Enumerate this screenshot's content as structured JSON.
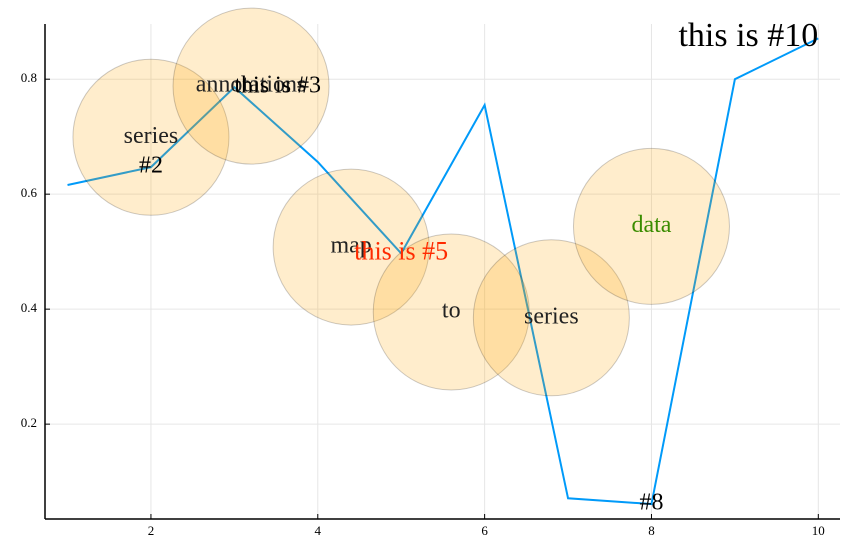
{
  "chart_data": {
    "type": "line",
    "x": [
      1,
      2,
      3,
      4,
      5,
      6,
      7,
      8,
      9,
      10
    ],
    "series": [
      {
        "color": "#009af9",
        "values": [
          0.616,
          0.647,
          0.786,
          0.656,
          0.497,
          0.755,
          0.071,
          0.061,
          0.8,
          0.871
        ]
      }
    ],
    "scatter": {
      "color": "#ffa500",
      "opacity": 0.2,
      "x": [
        2,
        3.2,
        4.4,
        5.6,
        6.8,
        8
      ],
      "values": [
        0.699,
        0.788,
        0.508,
        0.395,
        0.385,
        0.544
      ],
      "labels": [
        "series",
        "annotations",
        "map",
        "to",
        "series",
        "data"
      ],
      "label_colors": [
        "#222222",
        "#222222",
        "#222222",
        "#222222",
        "#222222",
        "#3a8c00"
      ]
    },
    "annotations": [
      {
        "x": 2,
        "y": 0.647,
        "text": "#2",
        "color": "#000000",
        "align": "middle",
        "size": 24
      },
      {
        "x": 3,
        "y": 0.786,
        "text": "this is #3",
        "color": "#000000",
        "align": "start",
        "size": 24
      },
      {
        "x": 5,
        "y": 0.497,
        "text": "this is #5",
        "color": "#ff2a00",
        "align": "middle",
        "size": 26
      },
      {
        "x": 8,
        "y": 0.061,
        "text": "#8",
        "color": "#000000",
        "align": "middle",
        "size": 24
      },
      {
        "x": 10,
        "y": 0.871,
        "text": "this is #10",
        "color": "#000000",
        "align": "end",
        "size": 34
      }
    ],
    "xlim": [
      0.73,
      10.26
    ],
    "ylim": [
      0.035,
      0.896
    ],
    "xticks": [
      2,
      4,
      6,
      8,
      10
    ],
    "yticks": [
      0.2,
      0.4,
      0.6,
      0.8
    ],
    "grid": true
  }
}
